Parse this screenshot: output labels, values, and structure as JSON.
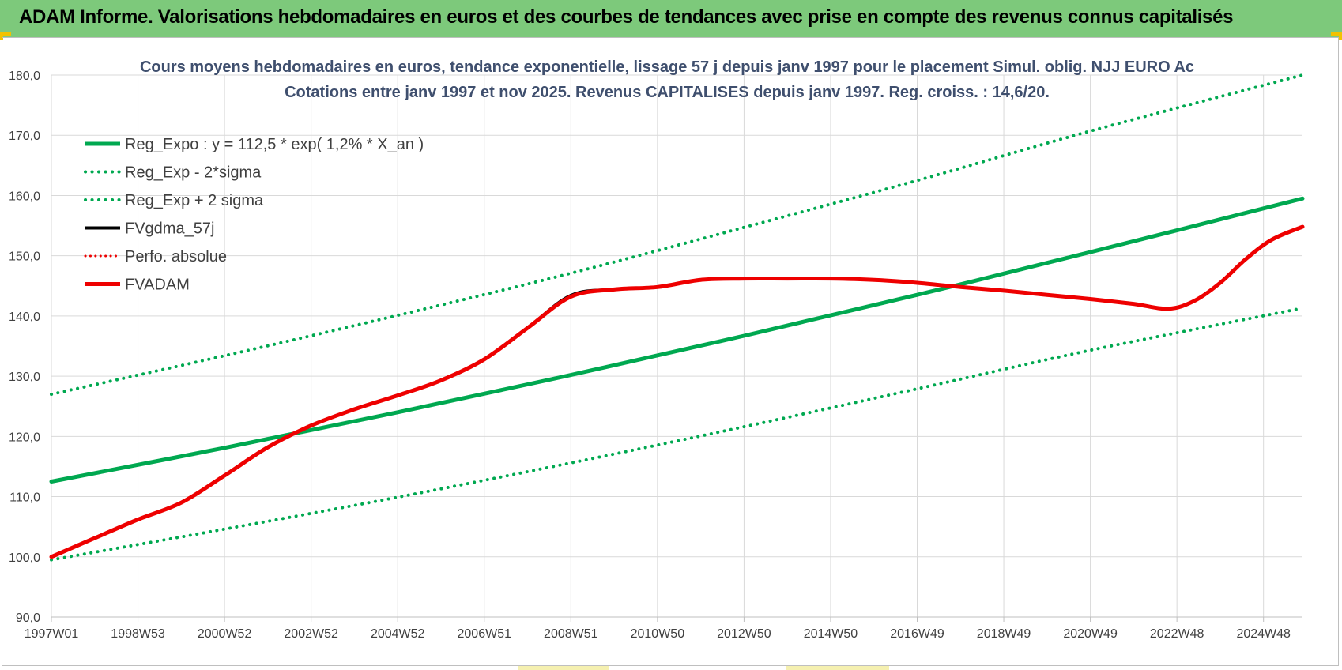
{
  "header": {
    "title": "ADAM Informe. Valorisations hebdomadaires en euros et des courbes de tendances avec prise en compte des revenus connus capitalisés"
  },
  "colors": {
    "title_bar": "#7dc97b",
    "green": "#00a850",
    "red": "#ee0000",
    "black": "#000000",
    "grid": "#d9d9d9",
    "axis_text": "#404040",
    "subtitle": "#3f4f6e"
  },
  "chart_data": {
    "type": "line",
    "title": "Cours moyens hebdomadaires en euros, tendance exponentielle, lissage 57 j depuis janv 1997  pour le placement Simul. oblig. NJJ EURO Ac",
    "subtitle": "Cotations entre janv 1997 et nov 2025. Revenus CAPITALISES depuis janv 1997. Reg. croiss. : 14,6/20.",
    "xlabel": "",
    "ylabel": "",
    "xlim": [
      1997.0,
      2025.9
    ],
    "ylim": [
      90,
      180
    ],
    "y_ticks": [
      "90,0",
      "100,0",
      "110,0",
      "120,0",
      "130,0",
      "140,0",
      "150,0",
      "160,0",
      "170,0",
      "180,0"
    ],
    "y_tick_values": [
      90,
      100,
      110,
      120,
      130,
      140,
      150,
      160,
      170,
      180
    ],
    "x_ticks": [
      "1997W01",
      "1998W53",
      "2000W52",
      "2002W52",
      "2004W52",
      "2006W51",
      "2008W51",
      "2010W50",
      "2012W50",
      "2014W50",
      "2016W49",
      "2018W49",
      "2020W49",
      "2022W48",
      "2024W48"
    ],
    "x_tick_values": [
      1997.0,
      1999.0,
      2001.0,
      2003.0,
      2005.0,
      2007.0,
      2009.0,
      2011.0,
      2013.0,
      2015.0,
      2017.0,
      2019.0,
      2021.0,
      2023.0,
      2025.0
    ],
    "legend_position": "top-left",
    "series": [
      {
        "name": "Reg_Expo : y = 112,5 * exp( 1,2% *  X_an )",
        "style": "solid",
        "color": "#00a850",
        "width": 5,
        "points": [
          [
            1997.0,
            112.5
          ],
          [
            2001.0,
            118.1
          ],
          [
            2005.0,
            124.0
          ],
          [
            2009.0,
            130.2
          ],
          [
            2013.0,
            136.7
          ],
          [
            2017.0,
            143.5
          ],
          [
            2021.0,
            150.6
          ],
          [
            2025.9,
            159.5
          ]
        ]
      },
      {
        "name": "Reg_Exp - 2*sigma",
        "style": "dotted",
        "color": "#00a850",
        "width": 4,
        "points": [
          [
            1997.0,
            99.5
          ],
          [
            2001.0,
            104.6
          ],
          [
            2005.0,
            109.9
          ],
          [
            2009.0,
            115.6
          ],
          [
            2013.0,
            121.6
          ],
          [
            2017.0,
            127.9
          ],
          [
            2021.0,
            134.3
          ],
          [
            2025.9,
            141.3
          ]
        ]
      },
      {
        "name": "Reg_Exp + 2 sigma",
        "style": "dotted",
        "color": "#00a850",
        "width": 4,
        "points": [
          [
            1997.0,
            127.0
          ],
          [
            2001.0,
            133.4
          ],
          [
            2005.0,
            140.1
          ],
          [
            2009.0,
            147.1
          ],
          [
            2013.0,
            154.7
          ],
          [
            2017.0,
            162.5
          ],
          [
            2021.0,
            170.7
          ],
          [
            2025.9,
            180.0
          ]
        ]
      },
      {
        "name": "FVgdma_57j",
        "style": "solid",
        "color": "#000000",
        "width": 4,
        "points": [
          [
            1997.0,
            100.0
          ],
          [
            1998.0,
            103.1
          ],
          [
            1999.0,
            106.2
          ],
          [
            2000.0,
            109.0
          ],
          [
            2001.0,
            113.5
          ],
          [
            2002.0,
            118.2
          ],
          [
            2003.0,
            121.8
          ],
          [
            2004.0,
            124.5
          ],
          [
            2005.0,
            126.8
          ],
          [
            2006.0,
            129.3
          ],
          [
            2007.0,
            132.8
          ],
          [
            2008.0,
            138.0
          ],
          [
            2009.0,
            143.4
          ],
          [
            2010.0,
            144.4
          ],
          [
            2011.0,
            144.8
          ],
          [
            2012.0,
            146.0
          ],
          [
            2013.0,
            146.2
          ],
          [
            2014.0,
            146.2
          ],
          [
            2015.0,
            146.2
          ],
          [
            2016.0,
            146.0
          ],
          [
            2017.0,
            145.5
          ],
          [
            2018.0,
            144.8
          ],
          [
            2019.0,
            144.2
          ],
          [
            2020.0,
            143.5
          ],
          [
            2021.0,
            142.8
          ],
          [
            2022.0,
            142.0
          ],
          [
            2022.8,
            141.2
          ],
          [
            2023.4,
            142.5
          ],
          [
            2024.0,
            145.5
          ],
          [
            2024.6,
            149.5
          ],
          [
            2025.2,
            152.7
          ],
          [
            2025.9,
            154.8
          ]
        ]
      },
      {
        "name": "Perfo. absolue",
        "style": "dotted",
        "color": "#ee0000",
        "width": 3,
        "points": []
      },
      {
        "name": "FVADAM",
        "style": "solid",
        "color": "#ee0000",
        "width": 5,
        "points": [
          [
            1997.0,
            100.0
          ],
          [
            1998.0,
            103.1
          ],
          [
            1999.0,
            106.2
          ],
          [
            2000.0,
            109.0
          ],
          [
            2001.0,
            113.5
          ],
          [
            2002.0,
            118.2
          ],
          [
            2003.0,
            121.8
          ],
          [
            2004.0,
            124.5
          ],
          [
            2005.0,
            126.8
          ],
          [
            2006.0,
            129.3
          ],
          [
            2007.0,
            132.8
          ],
          [
            2008.0,
            138.0
          ],
          [
            2009.0,
            143.2
          ],
          [
            2010.0,
            144.4
          ],
          [
            2011.0,
            144.8
          ],
          [
            2012.0,
            146.0
          ],
          [
            2013.0,
            146.2
          ],
          [
            2014.0,
            146.2
          ],
          [
            2015.0,
            146.2
          ],
          [
            2016.0,
            146.0
          ],
          [
            2017.0,
            145.5
          ],
          [
            2018.0,
            144.8
          ],
          [
            2019.0,
            144.2
          ],
          [
            2020.0,
            143.5
          ],
          [
            2021.0,
            142.8
          ],
          [
            2022.0,
            142.0
          ],
          [
            2022.8,
            141.2
          ],
          [
            2023.4,
            142.5
          ],
          [
            2024.0,
            145.5
          ],
          [
            2024.6,
            149.5
          ],
          [
            2025.2,
            152.7
          ],
          [
            2025.9,
            154.8
          ]
        ]
      }
    ]
  }
}
